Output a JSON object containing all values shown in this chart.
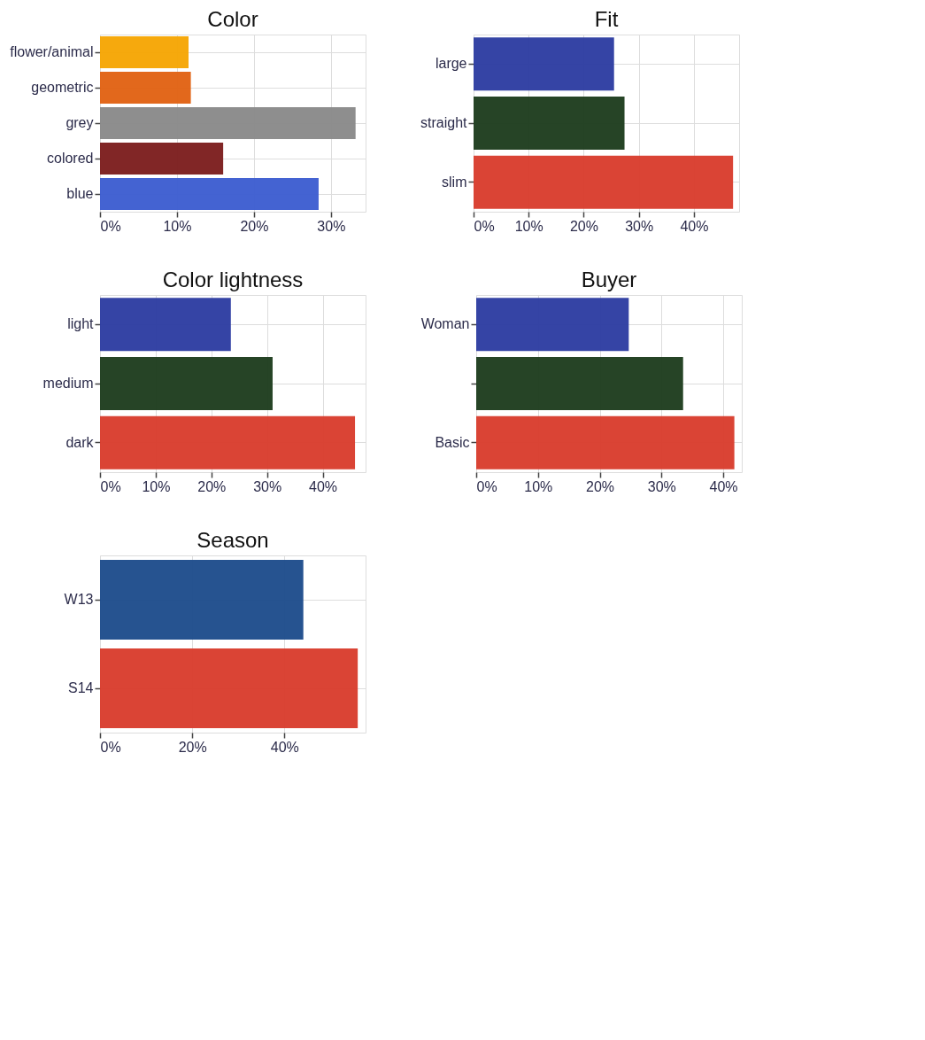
{
  "chart_data": [
    {
      "type": "bar",
      "orientation": "horizontal",
      "title": "Color",
      "categories": [
        "flower/animal",
        "geometric",
        "grey",
        "colored",
        "blue"
      ],
      "values": [
        11.5,
        11.8,
        33.2,
        16.0,
        28.4
      ],
      "colors": [
        "#f5a400",
        "#e06010",
        "#888888",
        "#7a1a1a",
        "#3a5bd0"
      ],
      "xlim": [
        0,
        34.5
      ],
      "xticks": [
        {
          "value": 0,
          "label": "0%"
        },
        {
          "value": 10,
          "label": "10%"
        },
        {
          "value": 20,
          "label": "20%"
        },
        {
          "value": 30,
          "label": "30%"
        }
      ],
      "grid": true,
      "legend": false
    },
    {
      "type": "bar",
      "orientation": "horizontal",
      "title": "Fit",
      "categories": [
        "large",
        "straight",
        "slim"
      ],
      "values": [
        25.5,
        27.4,
        47.1
      ],
      "colors": [
        "#2a3aa0",
        "#1a3a1a",
        "#d83a2a"
      ],
      "xlim": [
        0,
        48.2
      ],
      "xticks": [
        {
          "value": 0,
          "label": "0%"
        },
        {
          "value": 10,
          "label": "10%"
        },
        {
          "value": 20,
          "label": "20%"
        },
        {
          "value": 30,
          "label": "30%"
        },
        {
          "value": 40,
          "label": "40%"
        }
      ],
      "grid": true,
      "legend": false
    },
    {
      "type": "bar",
      "orientation": "horizontal",
      "title": "Color lightness",
      "categories": [
        "light",
        "medium",
        "dark"
      ],
      "values": [
        23.5,
        31.0,
        45.8
      ],
      "colors": [
        "#2a3aa0",
        "#1a3a1a",
        "#d83a2a"
      ],
      "xlim": [
        0,
        47.7
      ],
      "xticks": [
        {
          "value": 0,
          "label": "0%"
        },
        {
          "value": 10,
          "label": "10%"
        },
        {
          "value": 20,
          "label": "20%"
        },
        {
          "value": 30,
          "label": "30%"
        },
        {
          "value": 40,
          "label": "40%"
        }
      ],
      "grid": true,
      "legend": false
    },
    {
      "type": "bar",
      "orientation": "horizontal",
      "title": "Buyer",
      "categories": [
        "Woman",
        null,
        "Basic"
      ],
      "values": [
        24.7,
        33.5,
        41.8
      ],
      "colors": [
        "#2a3aa0",
        "#1a3a1a",
        "#d83a2a"
      ],
      "xlim": [
        0,
        43
      ],
      "xticks": [
        {
          "value": 0,
          "label": "0%"
        },
        {
          "value": 10,
          "label": "10%"
        },
        {
          "value": 20,
          "label": "20%"
        },
        {
          "value": 30,
          "label": "30%"
        },
        {
          "value": 40,
          "label": "40%"
        }
      ],
      "grid": true,
      "legend": false
    },
    {
      "type": "bar",
      "orientation": "horizontal",
      "title": "Season",
      "categories": [
        "W13",
        "S14"
      ],
      "values": [
        44.1,
        55.9
      ],
      "colors": [
        "#1a4a8a",
        "#d83a2a"
      ],
      "xlim": [
        0,
        57.6
      ],
      "xticks": [
        {
          "value": 0,
          "label": "0%"
        },
        {
          "value": 20,
          "label": "20%"
        },
        {
          "value": 40,
          "label": "40%"
        }
      ],
      "grid": true,
      "legend": false
    }
  ]
}
